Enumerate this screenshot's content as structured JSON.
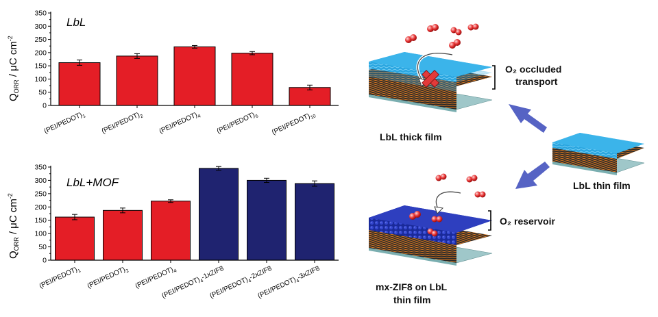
{
  "chart_data": [
    {
      "type": "bar",
      "title": "LbL",
      "ylabel": "Q_ORR / μC cm⁻²",
      "ylim": [
        0,
        350
      ],
      "yticks": [
        0,
        50,
        100,
        150,
        200,
        250,
        300,
        350
      ],
      "categories": [
        "(PEI/PEDOT)1",
        "(PEI/PEDOT)2",
        "(PEI/PEDOT)4",
        "(PEI/PEDOT)6",
        "(PEI/PEDOT)10"
      ],
      "values": [
        162,
        187,
        222,
        198,
        68
      ],
      "errors": [
        10,
        9,
        5,
        6,
        9
      ],
      "colors": [
        "#e41e26",
        "#e41e26",
        "#e41e26",
        "#e41e26",
        "#e41e26"
      ]
    },
    {
      "type": "bar",
      "title": "LbL+MOF",
      "ylabel": "Q_ORR / μC cm⁻²",
      "ylim": [
        0,
        350
      ],
      "yticks": [
        0,
        50,
        100,
        150,
        200,
        250,
        300,
        350
      ],
      "categories": [
        "(PEI/PEDOT)1",
        "(PEI/PEDOT)2",
        "(PEI/PEDOT)4",
        "(PEI/PEDOT)4-1xZIF8",
        "(PEI/PEDOT)4-2xZIF8",
        "(PEI/PEDOT)4-3xZIF8"
      ],
      "values": [
        162,
        187,
        222,
        345,
        300,
        288
      ],
      "errors": [
        10,
        9,
        5,
        7,
        8,
        10
      ],
      "colors": [
        "#e41e26",
        "#e41e26",
        "#e41e26",
        "#1f2370",
        "#1f2370",
        "#1f2370"
      ]
    }
  ],
  "schematic": {
    "thick_film_label": "LbL thick film",
    "occluded_label_1": "O₂ occluded",
    "occluded_label_2": "transport",
    "thin_film_label": "LbL thin film",
    "reservoir_label": "O₂ reservoir",
    "zif_label_1": "mx-ZIF8 on LbL",
    "zif_label_2": "thin film"
  }
}
